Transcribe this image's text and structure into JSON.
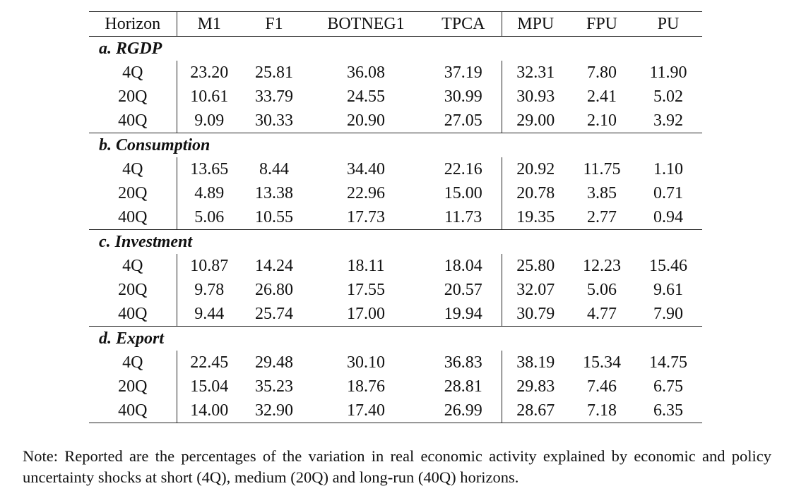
{
  "table": {
    "columns": [
      "Horizon",
      "M1",
      "F1",
      "BOTNEG1",
      "TPCA",
      "MPU",
      "FPU",
      "PU"
    ],
    "sections": [
      {
        "title": "a. RGDP",
        "rows": [
          {
            "horizon": "4Q",
            "values": [
              "23.20",
              "25.81",
              "36.08",
              "37.19",
              "32.31",
              "7.80",
              "11.90"
            ]
          },
          {
            "horizon": "20Q",
            "values": [
              "10.61",
              "33.79",
              "24.55",
              "30.99",
              "30.93",
              "2.41",
              "5.02"
            ]
          },
          {
            "horizon": "40Q",
            "values": [
              "9.09",
              "30.33",
              "20.90",
              "27.05",
              "29.00",
              "2.10",
              "3.92"
            ]
          }
        ]
      },
      {
        "title": "b. Consumption",
        "rows": [
          {
            "horizon": "4Q",
            "values": [
              "13.65",
              "8.44",
              "34.40",
              "22.16",
              "20.92",
              "11.75",
              "1.10"
            ]
          },
          {
            "horizon": "20Q",
            "values": [
              "4.89",
              "13.38",
              "22.96",
              "15.00",
              "20.78",
              "3.85",
              "0.71"
            ]
          },
          {
            "horizon": "40Q",
            "values": [
              "5.06",
              "10.55",
              "17.73",
              "11.73",
              "19.35",
              "2.77",
              "0.94"
            ]
          }
        ]
      },
      {
        "title": "c. Investment",
        "rows": [
          {
            "horizon": "4Q",
            "values": [
              "10.87",
              "14.24",
              "18.11",
              "18.04",
              "25.80",
              "12.23",
              "15.46"
            ]
          },
          {
            "horizon": "20Q",
            "values": [
              "9.78",
              "26.80",
              "17.55",
              "20.57",
              "32.07",
              "5.06",
              "9.61"
            ]
          },
          {
            "horizon": "40Q",
            "values": [
              "9.44",
              "25.74",
              "17.00",
              "19.94",
              "30.79",
              "4.77",
              "7.90"
            ]
          }
        ]
      },
      {
        "title": "d. Export",
        "rows": [
          {
            "horizon": "4Q",
            "values": [
              "22.45",
              "29.48",
              "30.10",
              "36.83",
              "38.19",
              "15.34",
              "14.75"
            ]
          },
          {
            "horizon": "20Q",
            "values": [
              "15.04",
              "35.23",
              "18.76",
              "28.81",
              "29.83",
              "7.46",
              "6.75"
            ]
          },
          {
            "horizon": "40Q",
            "values": [
              "14.00",
              "32.90",
              "17.40",
              "26.99",
              "28.67",
              "7.18",
              "6.35"
            ]
          }
        ]
      }
    ]
  },
  "note": "Note: Reported are the percentages of the variation in real economic activity explained by economic and policy uncertainty shocks at short (4Q), medium (20Q) and long-run (40Q) horizons."
}
